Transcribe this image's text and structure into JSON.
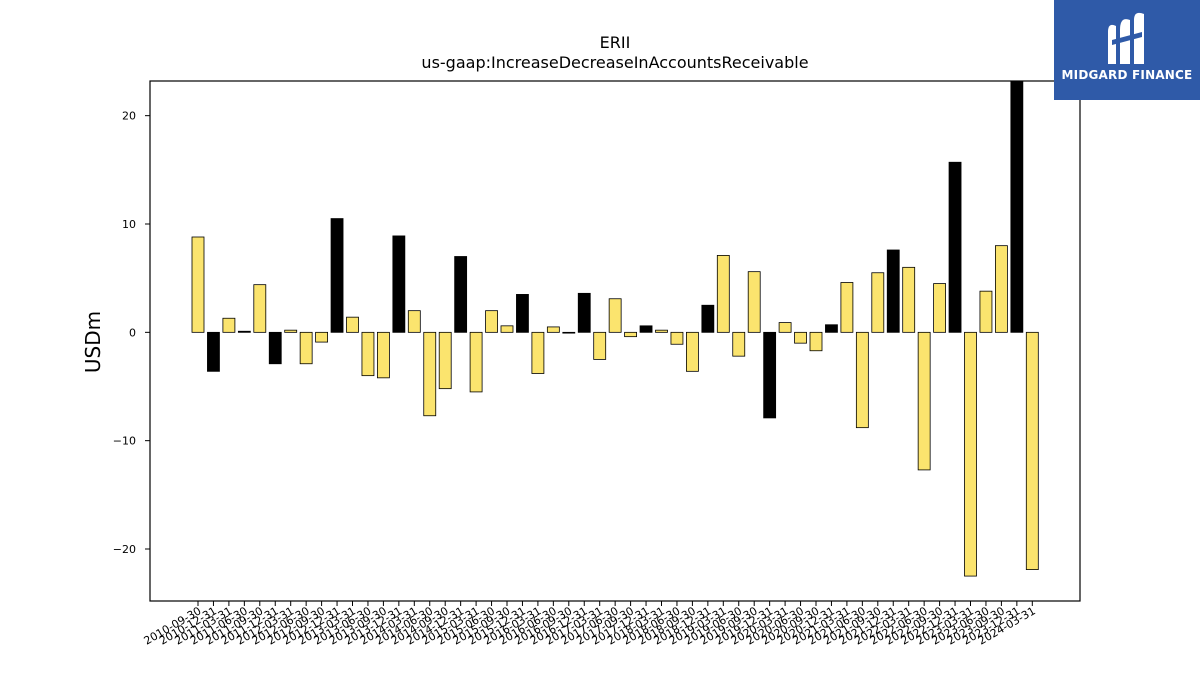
{
  "chart_data": {
    "type": "bar",
    "title": "ERII",
    "subtitle": "us-gaap:IncreaseDecreaseInAccountsReceivable",
    "ylabel": "USDm",
    "xlabel": "",
    "ylim": [
      -24.8,
      23.2
    ],
    "yticks": [
      -20,
      -10,
      0,
      10,
      20
    ],
    "grid": false,
    "colors": {
      "positive_q4": "#000000",
      "other": "#fbe46e",
      "edge": "#000000"
    },
    "categories": [
      "2010-09-30",
      "2010-12-31",
      "2011-03-31",
      "2011-06-30",
      "2011-09-30",
      "2011-12-31",
      "2012-03-31",
      "2012-06-30",
      "2012-09-30",
      "2012-12-31",
      "2013-03-31",
      "2013-06-30",
      "2013-09-30",
      "2013-12-31",
      "2014-03-31",
      "2014-06-30",
      "2014-09-30",
      "2014-12-31",
      "2015-03-31",
      "2015-06-30",
      "2015-09-30",
      "2015-12-31",
      "2016-03-31",
      "2016-06-30",
      "2016-09-30",
      "2016-12-31",
      "2017-03-31",
      "2017-06-30",
      "2017-09-30",
      "2017-12-31",
      "2018-03-31",
      "2018-06-30",
      "2018-09-30",
      "2018-12-31",
      "2019-03-31",
      "2019-06-30",
      "2019-09-30",
      "2019-12-31",
      "2020-03-31",
      "2020-06-30",
      "2020-09-30",
      "2020-12-31",
      "2021-03-31",
      "2021-06-30",
      "2021-09-30",
      "2021-12-31",
      "2022-03-31",
      "2022-06-30",
      "2022-09-30",
      "2022-12-31",
      "2023-03-31",
      "2023-06-30",
      "2023-09-30",
      "2023-12-31",
      "2024-03-31"
    ],
    "values": [
      8.8,
      -3.6,
      1.3,
      0.1,
      4.4,
      -2.9,
      0.2,
      -2.9,
      -0.9,
      10.5,
      1.4,
      -4.0,
      -4.2,
      8.9,
      2.0,
      -7.7,
      -5.2,
      7.0,
      -5.5,
      2.0,
      0.6,
      3.5,
      -3.8,
      0.5,
      0.0,
      3.6,
      -2.5,
      3.1,
      -0.4,
      0.6,
      0.2,
      -1.1,
      -3.6,
      2.5,
      7.1,
      -2.2,
      5.6,
      -7.9,
      0.9,
      -1.0,
      -1.7,
      0.7,
      4.6,
      -8.8,
      5.5,
      7.6,
      6.0,
      -12.7,
      4.5,
      15.7,
      -22.5,
      3.8,
      8.0,
      23.4,
      -21.9
    ],
    "highlight": [
      false,
      true,
      false,
      true,
      false,
      true,
      false,
      false,
      false,
      true,
      false,
      false,
      false,
      true,
      false,
      false,
      false,
      true,
      false,
      false,
      false,
      true,
      false,
      false,
      false,
      true,
      false,
      false,
      false,
      true,
      false,
      false,
      false,
      true,
      false,
      false,
      false,
      true,
      false,
      false,
      false,
      true,
      false,
      false,
      false,
      true,
      false,
      false,
      false,
      true,
      false,
      false,
      false,
      true,
      false
    ]
  },
  "logo": {
    "text": "MIDGARD FINANCE"
  }
}
